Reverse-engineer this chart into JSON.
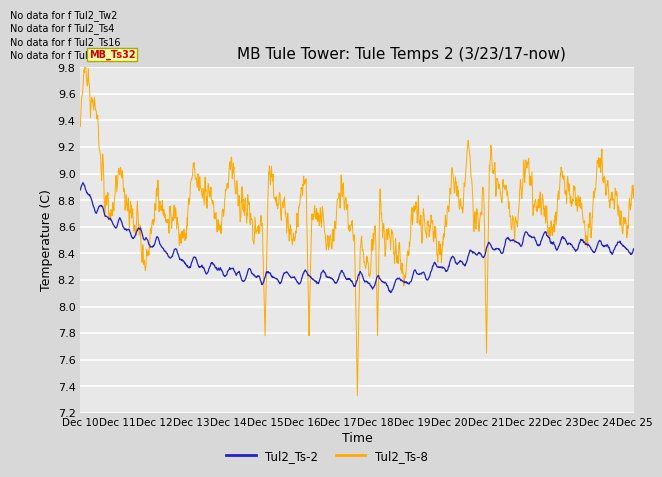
{
  "title": "MB Tule Tower: Tule Temps 2 (3/23/17-now)",
  "xlabel": "Time",
  "ylabel": "Temperature (C)",
  "ylim": [
    7.2,
    9.8
  ],
  "yticks": [
    7.2,
    7.4,
    7.6,
    7.8,
    8.0,
    8.2,
    8.4,
    8.6,
    8.8,
    9.0,
    9.2,
    9.4,
    9.6,
    9.8
  ],
  "x_labels": [
    "Dec 10",
    "Dec 11",
    "Dec 12",
    "Dec 13",
    "Dec 14",
    "Dec 15",
    "Dec 16",
    "Dec 17",
    "Dec 18",
    "Dec 19",
    "Dec 20",
    "Dec 21",
    "Dec 22",
    "Dec 23",
    "Dec 24",
    "Dec 25"
  ],
  "no_data_lines": [
    "No data for f Tul2_Tw2",
    "No data for f Tul2_Ts4",
    "No data for f Tul2_Ts16",
    "No data for f Tul2_Ts32"
  ],
  "legend_entries": [
    "Tul2_Ts-2",
    "Tul2_Ts-8"
  ],
  "line_colors": [
    "#2222cc",
    "#ffaa00"
  ],
  "figure_bg": "#d8d8d8",
  "plot_bg": "#e8e8e8",
  "grid_color": "#ffffff",
  "title_fontsize": 11,
  "tick_fontsize": 8,
  "axis_label_fontsize": 9,
  "tooltip_bg": "#ffffaa",
  "tooltip_border": "#aaaa00",
  "tooltip_text_color": "#cc0000"
}
